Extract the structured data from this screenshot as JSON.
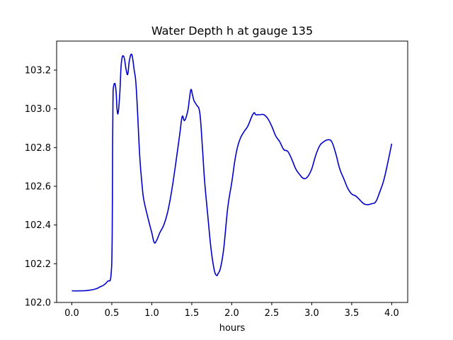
{
  "chart_data": {
    "type": "line",
    "title": "Water Depth h at gauge 135",
    "xlabel": "hours",
    "ylabel": "",
    "xlim": [
      -0.19,
      4.2
    ],
    "ylim": [
      102.0,
      103.35
    ],
    "grid": false,
    "x_ticks": [
      {
        "value": 0.0,
        "label": "0.0"
      },
      {
        "value": 0.5,
        "label": "0.5"
      },
      {
        "value": 1.0,
        "label": "1.0"
      },
      {
        "value": 1.5,
        "label": "1.5"
      },
      {
        "value": 2.0,
        "label": "2.0"
      },
      {
        "value": 2.5,
        "label": "2.5"
      },
      {
        "value": 3.0,
        "label": "3.0"
      },
      {
        "value": 3.5,
        "label": "3.5"
      },
      {
        "value": 4.0,
        "label": "4.0"
      }
    ],
    "y_ticks": [
      {
        "value": 102.0,
        "label": "102.0"
      },
      {
        "value": 102.2,
        "label": "102.2"
      },
      {
        "value": 102.4,
        "label": "102.4"
      },
      {
        "value": 102.6,
        "label": "102.6"
      },
      {
        "value": 102.8,
        "label": "102.8"
      },
      {
        "value": 103.0,
        "label": "103.0"
      },
      {
        "value": 103.2,
        "label": "103.2"
      }
    ],
    "series": [
      {
        "color": "#0000cc",
        "x": [
          0.0,
          0.1,
          0.2,
          0.3,
          0.35,
          0.4,
          0.45,
          0.49,
          0.505,
          0.51,
          0.515,
          0.52,
          0.54,
          0.555,
          0.565,
          0.58,
          0.6,
          0.62,
          0.65,
          0.68,
          0.7,
          0.72,
          0.75,
          0.78,
          0.8,
          0.82,
          0.85,
          0.88,
          0.9,
          0.95,
          1.0,
          1.03,
          1.06,
          1.1,
          1.15,
          1.2,
          1.25,
          1.3,
          1.35,
          1.38,
          1.41,
          1.45,
          1.47,
          1.49,
          1.51,
          1.53,
          1.56,
          1.6,
          1.63,
          1.66,
          1.7,
          1.74,
          1.78,
          1.81,
          1.83,
          1.86,
          1.9,
          1.95,
          2.0,
          2.05,
          2.1,
          2.15,
          2.2,
          2.25,
          2.28,
          2.3,
          2.35,
          2.4,
          2.45,
          2.5,
          2.55,
          2.6,
          2.65,
          2.7,
          2.75,
          2.8,
          2.85,
          2.9,
          2.95,
          3.0,
          3.05,
          3.1,
          3.15,
          3.2,
          3.25,
          3.3,
          3.35,
          3.4,
          3.45,
          3.5,
          3.55,
          3.6,
          3.65,
          3.7,
          3.75,
          3.8,
          3.85,
          3.9,
          3.95,
          4.0
        ],
        "y": [
          102.06,
          102.06,
          102.062,
          102.07,
          102.08,
          102.09,
          102.11,
          102.14,
          102.35,
          102.8,
          103.05,
          103.11,
          103.13,
          103.08,
          103.0,
          102.98,
          103.08,
          103.24,
          103.27,
          103.2,
          103.18,
          103.25,
          103.28,
          103.2,
          103.14,
          103.0,
          102.75,
          102.6,
          102.53,
          102.44,
          102.36,
          102.31,
          102.32,
          102.36,
          102.4,
          102.47,
          102.58,
          102.72,
          102.87,
          102.96,
          102.94,
          102.99,
          103.05,
          103.1,
          103.07,
          103.04,
          103.02,
          102.98,
          102.82,
          102.63,
          102.45,
          102.28,
          102.17,
          102.14,
          102.15,
          102.18,
          102.28,
          102.49,
          102.62,
          102.76,
          102.84,
          102.88,
          102.91,
          102.96,
          102.98,
          102.97,
          102.97,
          102.97,
          102.95,
          102.91,
          102.86,
          102.83,
          102.79,
          102.78,
          102.74,
          102.69,
          102.66,
          102.64,
          102.65,
          102.69,
          102.76,
          102.81,
          102.83,
          102.84,
          102.83,
          102.77,
          102.69,
          102.64,
          102.59,
          102.56,
          102.55,
          102.53,
          102.51,
          102.505,
          102.51,
          102.52,
          102.57,
          102.63,
          102.72,
          102.82
        ]
      }
    ]
  }
}
